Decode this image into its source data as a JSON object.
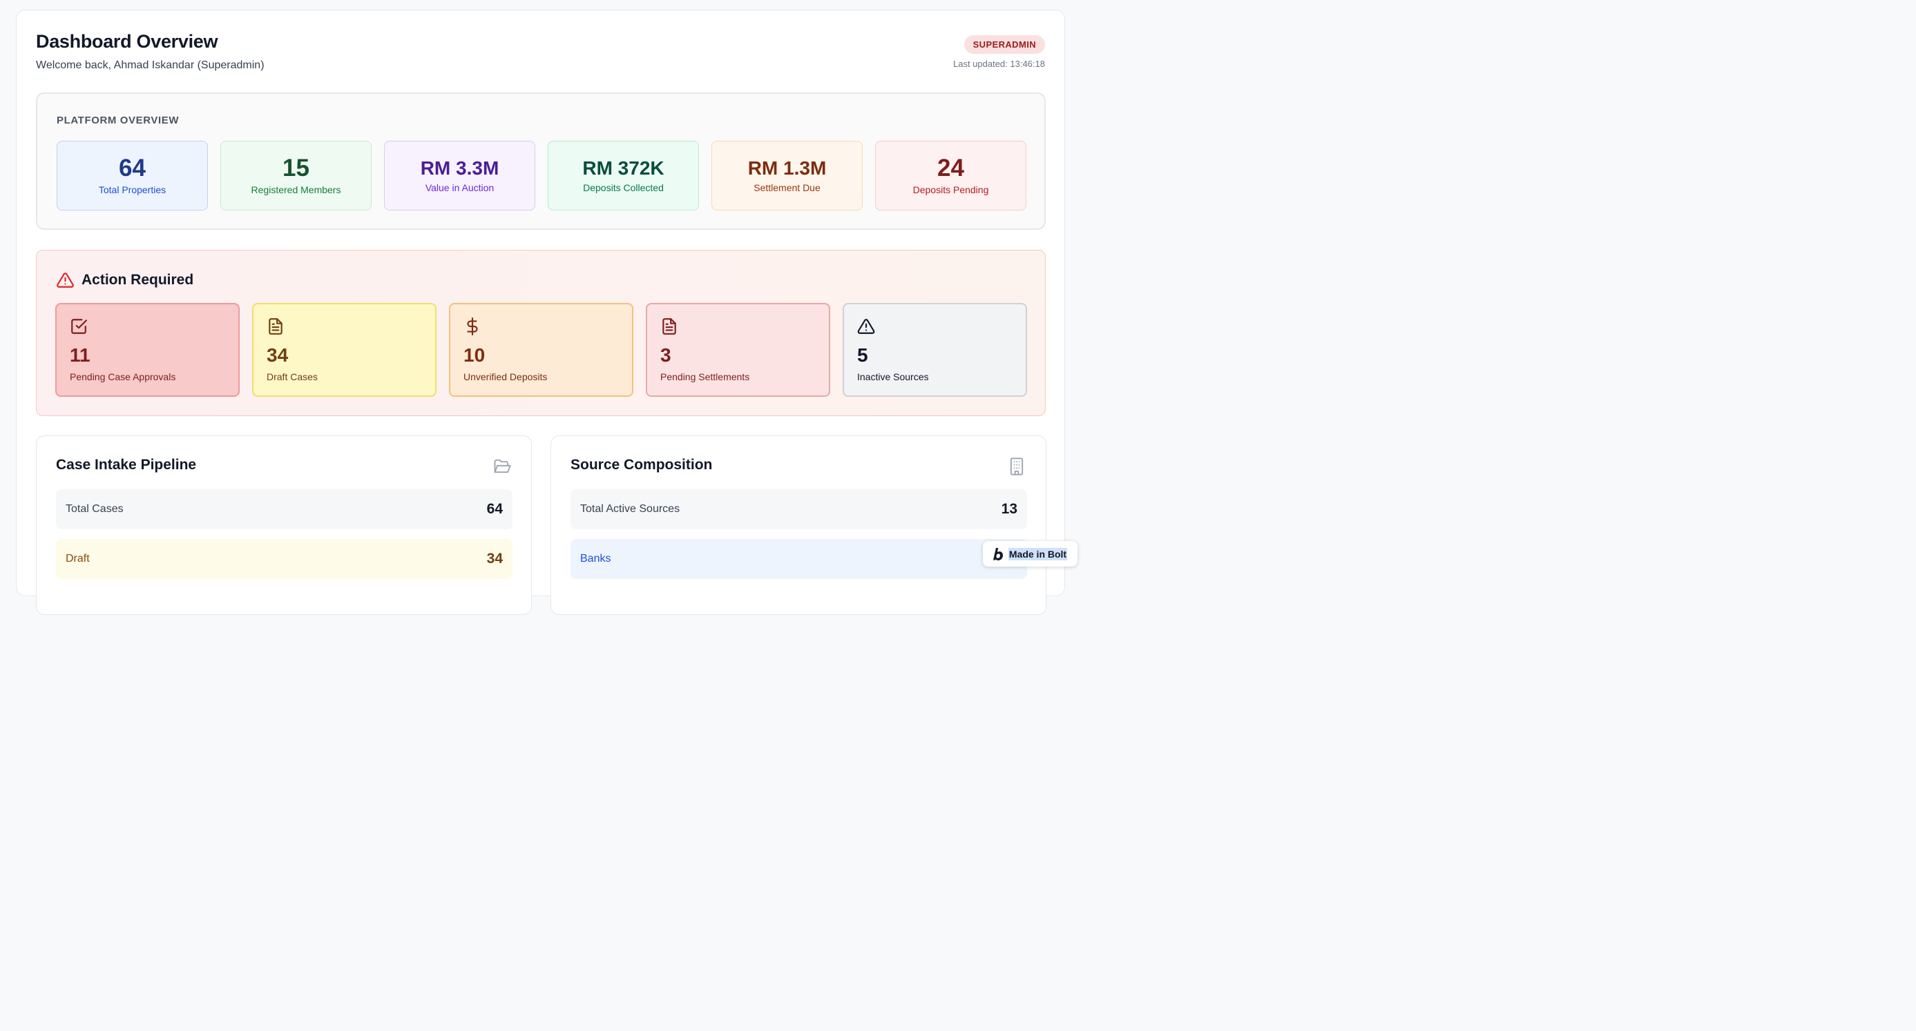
{
  "header": {
    "title": "Dashboard Overview",
    "welcome": "Welcome back, Ahmad Iskandar (Superadmin)",
    "role_badge": "SUPERADMIN",
    "last_updated": "Last updated: 13:46:18"
  },
  "platform_overview": {
    "label": "PLATFORM OVERVIEW",
    "stats": [
      {
        "value": "64",
        "label": "Total Properties",
        "bg": "#eef4fd",
        "border": "#bfd3f3",
        "color": "#1e3a8a",
        "label_color": "#1d4ed8"
      },
      {
        "value": "15",
        "label": "Registered Members",
        "bg": "#effaf2",
        "border": "#c3ead0",
        "color": "#14532d",
        "label_color": "#15803d"
      },
      {
        "value": "RM 3.3M",
        "label": "Value in Auction",
        "bg": "#f7f2fd",
        "border": "#dccbf3",
        "color": "#4c1d95",
        "label_color": "#6d28d9"
      },
      {
        "value": "RM 372K",
        "label": "Deposits Collected",
        "bg": "#ecfbf3",
        "border": "#b6eccd",
        "color": "#064e3b",
        "label_color": "#047857"
      },
      {
        "value": "RM 1.3M",
        "label": "Settlement Due",
        "bg": "#fef6ec",
        "border": "#f7d9ae",
        "color": "#7c2d12",
        "label_color": "#9a3412"
      },
      {
        "value": "24",
        "label": "Deposits Pending",
        "bg": "#fdf1f1",
        "border": "#f6cccc",
        "color": "#7f1d1d",
        "label_color": "#b91c1c"
      }
    ]
  },
  "action_required": {
    "title": "Action Required",
    "cards": [
      {
        "icon": "check-square-icon",
        "value": "11",
        "label": "Pending Case Approvals",
        "bg": "#f8caca",
        "border": "#eb9c9c",
        "color": "#7f1d1d"
      },
      {
        "icon": "document-icon",
        "value": "34",
        "label": "Draft Cases",
        "bg": "#fdf8c6",
        "border": "#f4dd6a",
        "color": "#713f12"
      },
      {
        "icon": "dollar-icon",
        "value": "10",
        "label": "Unverified Deposits",
        "bg": "#fdebd5",
        "border": "#f1c27d",
        "color": "#7c2d12"
      },
      {
        "icon": "document-icon",
        "value": "3",
        "label": "Pending Settlements",
        "bg": "#fbe3e3",
        "border": "#eba6a6",
        "color": "#7f1d1d"
      },
      {
        "icon": "warning-triangle-icon",
        "value": "5",
        "label": "Inactive Sources",
        "bg": "#f2f3f5",
        "border": "#cdd1d8",
        "color": "#111827"
      }
    ]
  },
  "case_intake": {
    "title": "Case Intake Pipeline",
    "rows": [
      {
        "label": "Total Cases",
        "value": "64",
        "bg": "#f6f7f9",
        "label_color": "#374151",
        "value_color": "#111827"
      },
      {
        "label": "Draft",
        "value": "34",
        "bg": "#fefbe8",
        "label_color": "#854d0e",
        "value_color": "#713f12"
      }
    ]
  },
  "source_composition": {
    "title": "Source Composition",
    "rows": [
      {
        "label": "Total Active Sources",
        "value": "13",
        "bg": "#f6f7f9",
        "label_color": "#374151",
        "value_color": "#111827"
      },
      {
        "label": "Banks",
        "value": "",
        "bg": "#eef4fd",
        "label_color": "#1d4ed8",
        "value_color": "#1e3a8a"
      }
    ]
  },
  "bolt_badge": {
    "label": "Made in Bolt"
  }
}
